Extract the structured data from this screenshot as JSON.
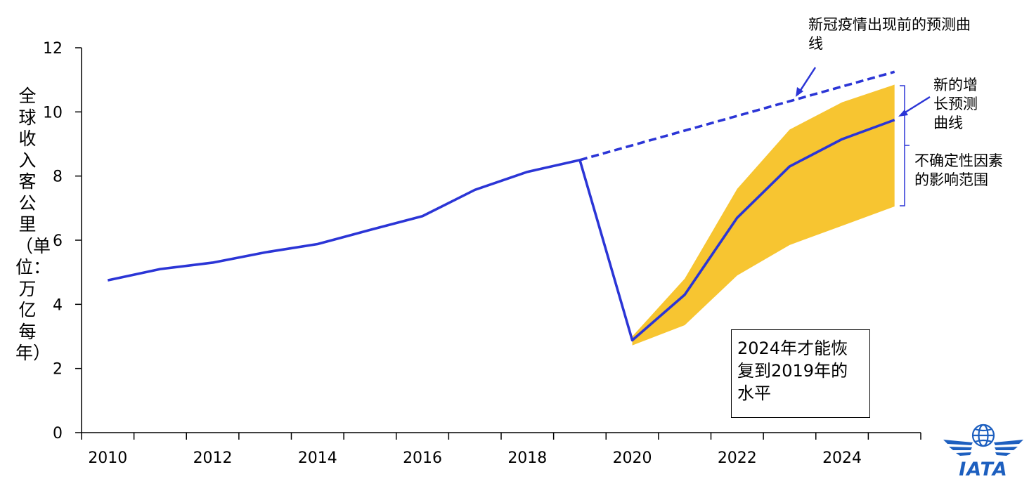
{
  "chart_data": {
    "type": "line",
    "title": "",
    "xlabel": "",
    "ylabel": "全球收入客公里（单位：万亿每年）",
    "xlim": [
      2009.5,
      2025.5
    ],
    "ylim": [
      0,
      12
    ],
    "x_ticks": [
      2010,
      2012,
      2014,
      2016,
      2018,
      2020,
      2022,
      2024
    ],
    "y_ticks": [
      0,
      2,
      4,
      6,
      8,
      10,
      12
    ],
    "x_tick_labels": [
      "2010",
      "2012",
      "2014",
      "2016",
      "2018",
      "2020",
      "2022",
      "2024"
    ],
    "y_tick_labels": [
      "0",
      "2",
      "4",
      "6",
      "8",
      "10",
      "12"
    ],
    "series": [
      {
        "name": "实际及新的增长预测曲线",
        "style": "solid",
        "x": [
          2010,
          2011,
          2012,
          2013,
          2014,
          2015,
          2016,
          2017,
          2018,
          2019,
          2020,
          2021,
          2022,
          2023,
          2024,
          2025
        ],
        "values": [
          4.75,
          5.1,
          5.3,
          5.62,
          5.88,
          6.32,
          6.75,
          7.57,
          8.13,
          8.5,
          2.88,
          4.3,
          6.7,
          8.3,
          9.15,
          9.75
        ]
      },
      {
        "name": "新冠疫情出现前的预测曲线",
        "style": "dashed",
        "x": [
          2019,
          2025
        ],
        "values": [
          8.5,
          11.25
        ]
      }
    ],
    "band": {
      "name": "不确定性因素的影响范围",
      "x": [
        2020,
        2021,
        2022,
        2023,
        2024,
        2025
      ],
      "upper": [
        3.0,
        4.8,
        7.6,
        9.45,
        10.3,
        10.85
      ],
      "lower": [
        2.72,
        3.35,
        4.9,
        5.85,
        6.45,
        7.05
      ]
    },
    "annotations": {
      "pre_covid": "新冠疫情出现前的预测曲线",
      "new_growth": "新的增长预测曲线",
      "uncertainty": "不确定性因素的影响范围",
      "recovery_box": "2024年才能恢复到2019年的水平"
    }
  },
  "logo": {
    "text": "IATA"
  },
  "colors": {
    "line": "#2b35d6",
    "band": "#f7c531",
    "axis": "#000000",
    "logo": "#1d5fbf"
  }
}
